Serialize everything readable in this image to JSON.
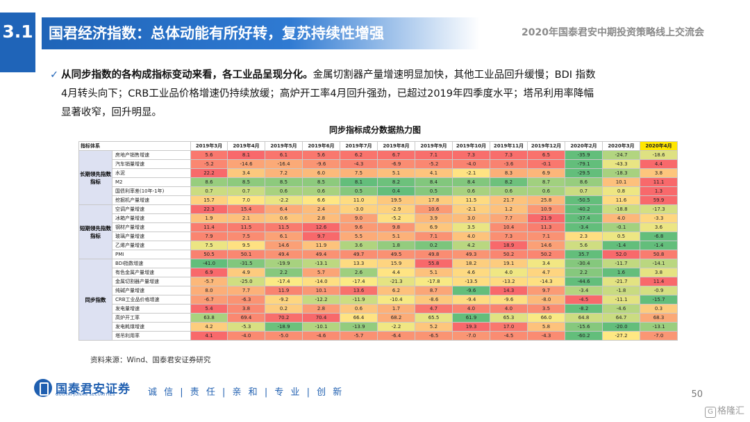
{
  "header": {
    "section_number": "3.1",
    "title": "国君经济指数：总体动能有所好转，复苏持续性增强",
    "conference": "2020年国泰君安中期投资策略线上交流会"
  },
  "summary": {
    "bold": "从同步指数的各构成指标变动来看，各工业品呈现分化。",
    "l1_rest": "金属切割器产量增速明显加快，其他工业品回升缓慢；BDI 指数",
    "l2": "4月转头向下；CRB工业品价格增速仍持续放缓；高炉开工率4月回升强劲，已超过2019年四季度水平；塔吊利用率降幅",
    "l3": "显著收窄，回升明显。"
  },
  "table": {
    "title": "同步指标成分数据热力图",
    "corner": "指标体系",
    "columns": [
      "2019年3月",
      "2019年4月",
      "2019年5月",
      "2019年6月",
      "2019年7月",
      "2019年8月",
      "2019年9月",
      "2019年10月",
      "2019年11月",
      "2019年12月",
      "2020年2月",
      "2020年3月",
      "2020年4月"
    ],
    "groups": [
      {
        "label": "长期领先指数指标",
        "rows": [
          {
            "name": "房地产销售增速",
            "values": [
              "5.6",
              "8.1",
              "6.1",
              "5.6",
              "6.2",
              "6.7",
              "7.1",
              "7.3",
              "7.3",
              "6.5",
              "-35.9",
              "-24.7",
              "-18.6"
            ]
          },
          {
            "name": "汽车销量增速",
            "values": [
              "-5.2",
              "-14.6",
              "-16.4",
              "-9.6",
              "-4.3",
              "-6.9",
              "-5.2",
              "-4.0",
              "-3.6",
              "-0.1",
              "-79.1",
              "-43.3",
              "4.4"
            ]
          },
          {
            "name": "水泥",
            "values": [
              "22.2",
              "3.4",
              "7.2",
              "6.0",
              "7.5",
              "5.1",
              "4.1",
              "-2.1",
              "8.3",
              "6.9",
              "-29.5",
              "-18.3",
              "3.8"
            ]
          },
          {
            "name": "M2",
            "values": [
              "8.6",
              "8.5",
              "8.5",
              "8.5",
              "8.1",
              "8.2",
              "8.4",
              "8.4",
              "8.2",
              "8.7",
              "8.6",
              "10.1",
              "11.1"
            ]
          },
          {
            "name": "国债利率差(10年-1年)",
            "values": [
              "0.7",
              "0.7",
              "0.6",
              "0.6",
              "0.5",
              "0.4",
              "0.5",
              "0.6",
              "0.6",
              "0.6",
              "0.7",
              "0.8",
              "1.3"
            ]
          },
          {
            "name": "挖掘机产量增速",
            "values": [
              "15.7",
              "7.0",
              "-2.2",
              "6.6",
              "11.0",
              "19.5",
              "17.8",
              "11.5",
              "21.7",
              "25.8",
              "-50.5",
              "11.6",
              "59.9"
            ]
          }
        ]
      },
      {
        "label": "短期领先指数指标",
        "rows": [
          {
            "name": "空调产量增速",
            "values": [
              "22.3",
              "15.4",
              "6.4",
              "2.4",
              "-3.0",
              "-2.9",
              "10.6",
              "-2.1",
              "1.2",
              "10.9",
              "-40.2",
              "-18.8",
              "-17.3"
            ]
          },
          {
            "name": "冰箱产量增速",
            "values": [
              "1.9",
              "2.1",
              "0.6",
              "2.8",
              "9.0",
              "-5.2",
              "3.9",
              "3.0",
              "7.7",
              "21.9",
              "-37.4",
              "4.0",
              "-3.3"
            ]
          },
          {
            "name": "钢材产量增速",
            "values": [
              "11.4",
              "11.5",
              "11.5",
              "12.6",
              "9.6",
              "9.8",
              "6.9",
              "3.5",
              "10.4",
              "11.3",
              "-3.4",
              "-0.1",
              "3.6"
            ]
          },
          {
            "name": "玻璃产量增速",
            "values": [
              "7.9",
              "7.5",
              "6.1",
              "9.7",
              "5.5",
              "5.1",
              "7.1",
              "4.0",
              "7.3",
              "7.1",
              "2.3",
              "0.5",
              "-6.8"
            ]
          },
          {
            "name": "乙烯产量增速",
            "values": [
              "7.5",
              "9.5",
              "14.6",
              "11.9",
              "3.6",
              "1.8",
              "0.2",
              "4.2",
              "18.9",
              "14.6",
              "5.6",
              "-1.4",
              "-1.4"
            ]
          },
          {
            "name": "PMI",
            "values": [
              "50.5",
              "50.1",
              "49.4",
              "49.4",
              "49.7",
              "49.5",
              "49.8",
              "49.3",
              "50.2",
              "50.2",
              "35.7",
              "52.0",
              "50.8"
            ]
          }
        ]
      },
      {
        "label": "同步指数",
        "rows": [
          {
            "name": "BDI指数增速",
            "values": [
              "-41.0",
              "-31.5",
              "-19.9",
              "-13.1",
              "13.3",
              "15.9",
              "55.8",
              "18.2",
              "19.1",
              "3.4",
              "-30.4",
              "-11.7",
              "-14.1"
            ]
          },
          {
            "name": "有色金属产量增速",
            "values": [
              "6.9",
              "4.9",
              "2.2",
              "5.7",
              "2.6",
              "4.4",
              "5.1",
              "4.6",
              "4.0",
              "4.7",
              "2.2",
              "1.6",
              "3.8"
            ]
          },
          {
            "name": "金属切割器产量增速",
            "values": [
              "-5.7",
              "-25.0",
              "-17.4",
              "-14.0",
              "-17.4",
              "-21.3",
              "-17.8",
              "-13.5",
              "-13.2",
              "-14.3",
              "-44.6",
              "-21.7",
              "11.4"
            ]
          },
          {
            "name": "纯碱产量增速",
            "values": [
              "8.0",
              "7.7",
              "11.9",
              "10.1",
              "13.6",
              "6.2",
              "8.7",
              "-9.6",
              "14.3",
              "9.7",
              "-3.4",
              "-1.8",
              "-0.9"
            ]
          },
          {
            "name": "CRB工业品价格增速",
            "values": [
              "-6.7",
              "-6.3",
              "-9.2",
              "-12.2",
              "-11.9",
              "-10.4",
              "-8.6",
              "-9.4",
              "-9.6",
              "-8.0",
              "-4.5",
              "-11.1",
              "-15.7"
            ]
          },
          {
            "name": "发电量增速",
            "values": [
              "5.4",
              "3.8",
              "0.2",
              "2.8",
              "0.6",
              "1.7",
              "4.7",
              "4.0",
              "4.0",
              "3.5",
              "-8.2",
              "-4.6",
              "0.3"
            ]
          },
          {
            "name": "高炉开工率",
            "values": [
              "63.8",
              "69.4",
              "70.2",
              "70.4",
              "66.4",
              "68.2",
              "65.5",
              "61.9",
              "65.3",
              "66.0",
              "64.8",
              "64.7",
              "68.3"
            ]
          },
          {
            "name": "发电耗煤增速",
            "values": [
              "4.2",
              "-5.3",
              "-18.9",
              "-10.1",
              "-13.9",
              "-2.2",
              "5.2",
              "19.3",
              "17.0",
              "5.8",
              "-15.6",
              "-20.0",
              "-13.1"
            ]
          },
          {
            "name": "塔吊利用率",
            "values": [
              "4.1",
              "-4.0",
              "-5.0",
              "-4.6",
              "-5.7",
              "-6.4",
              "-6.5",
              "-7.0",
              "-4.5",
              "-4.3",
              "-60.2",
              "-27.2",
              "-7.0"
            ]
          }
        ]
      }
    ]
  },
  "source": "资料来源：Wind、国泰君安证券研究",
  "footer": {
    "company_cn": "国泰君安证券",
    "company_en": "GUOTAI JUNAN SECURITIES",
    "motto": "诚 信 | 责 任 | 亲 和 | 专 业 | 创 新",
    "page_number": "50",
    "watermark": "格隆汇"
  },
  "colors": {
    "brand_blue": "#1f64b8",
    "heat_low": "#63be7b",
    "heat_mid": "#ffeb84",
    "heat_high": "#f8696b",
    "latest_header": "#ffe600"
  }
}
